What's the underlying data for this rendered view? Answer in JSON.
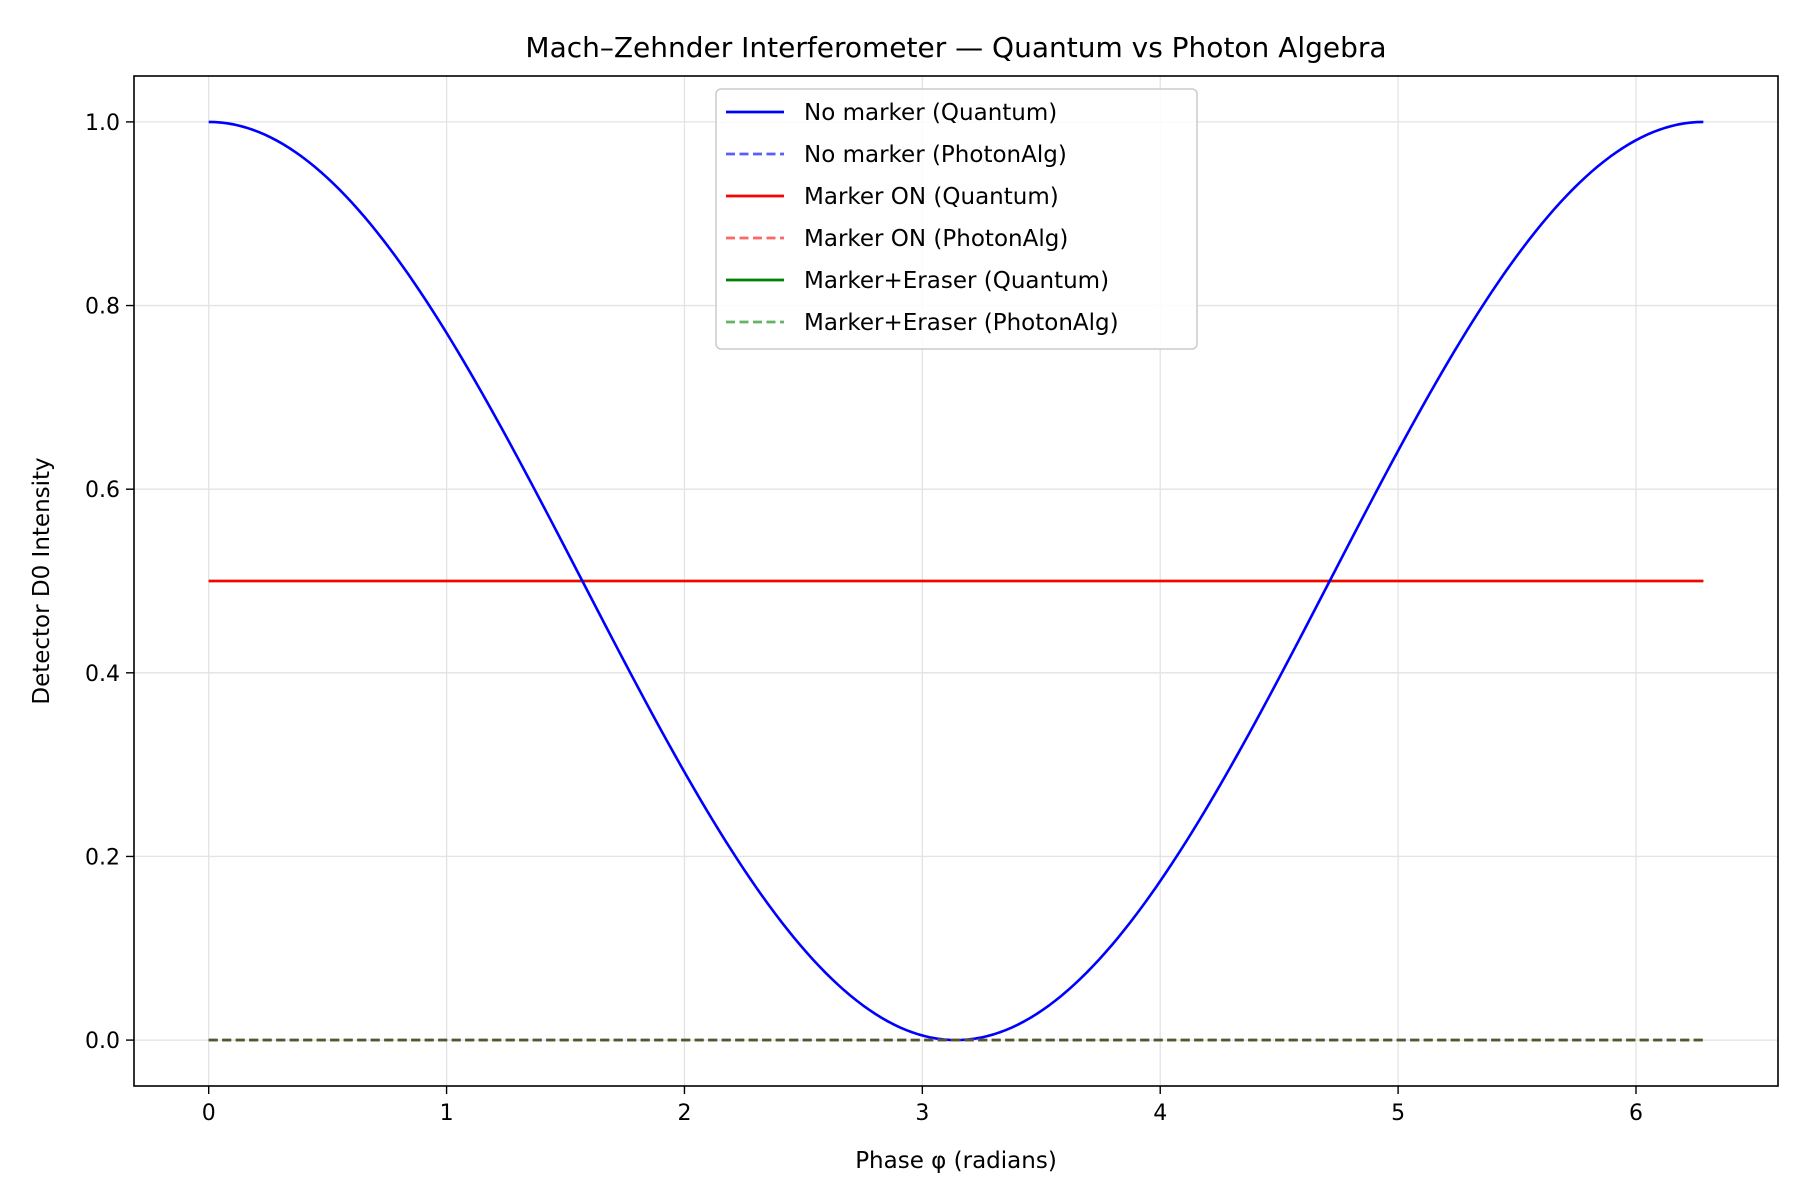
{
  "chart_data": {
    "type": "line",
    "title": "Mach–Zehnder Interferometer — Quantum vs Photon Algebra",
    "xlabel": "Phase φ (radians)",
    "ylabel": "Detector D0 Intensity",
    "xlim": [
      -0.314,
      6.597
    ],
    "ylim": [
      -0.05,
      1.05
    ],
    "xticks": [
      0,
      1,
      2,
      3,
      4,
      5,
      6
    ],
    "xtick_labels": [
      "0",
      "1",
      "2",
      "3",
      "4",
      "5",
      "6"
    ],
    "yticks": [
      0.0,
      0.2,
      0.4,
      0.6,
      0.8,
      1.0
    ],
    "ytick_labels": [
      "0.0",
      "0.2",
      "0.4",
      "0.6",
      "0.8",
      "1.0"
    ],
    "grid": true,
    "legend_position": "upper center",
    "x_range": [
      0,
      6.2832
    ],
    "series": [
      {
        "name": "No marker (Quantum)",
        "color": "#0000ff",
        "style": "solid",
        "x": [
          0,
          0.2618,
          0.5236,
          0.7854,
          1.0472,
          1.309,
          1.5708,
          1.8326,
          2.0944,
          2.3562,
          2.618,
          2.8798,
          3.1416,
          3.4034,
          3.6652,
          3.927,
          4.1888,
          4.4506,
          4.7124,
          4.9742,
          5.236,
          5.4978,
          5.7596,
          6.0214,
          6.2832
        ],
        "y": [
          1.0,
          0.983,
          0.933,
          0.854,
          0.75,
          0.629,
          0.5,
          0.371,
          0.25,
          0.146,
          0.067,
          0.017,
          0.0,
          0.017,
          0.067,
          0.146,
          0.25,
          0.371,
          0.5,
          0.629,
          0.75,
          0.854,
          0.933,
          0.983,
          1.0
        ]
      },
      {
        "name": "No marker (PhotonAlg)",
        "color": "#5c5cff",
        "style": "dashed",
        "x": [
          0,
          6.2832
        ],
        "y": [
          0.0,
          0.0
        ]
      },
      {
        "name": "Marker ON (Quantum)",
        "color": "#ff0000",
        "style": "solid",
        "x": [
          0,
          6.2832
        ],
        "y": [
          0.5,
          0.5
        ]
      },
      {
        "name": "Marker ON (PhotonAlg)",
        "color": "#ff6666",
        "style": "dashed",
        "x": [
          0,
          6.2832
        ],
        "y": [
          0.0,
          0.0
        ]
      },
      {
        "name": "Marker+Eraser (Quantum)",
        "color": "#008000",
        "style": "solid",
        "x": [
          0,
          6.2832
        ],
        "y": [
          0.5,
          0.5
        ]
      },
      {
        "name": "Marker+Eraser (PhotonAlg)",
        "color": "#4d5a2a",
        "style": "dashed",
        "legend_color": "#66b266",
        "x": [
          0,
          6.2832
        ],
        "y": [
          0.0,
          0.0
        ]
      }
    ]
  }
}
